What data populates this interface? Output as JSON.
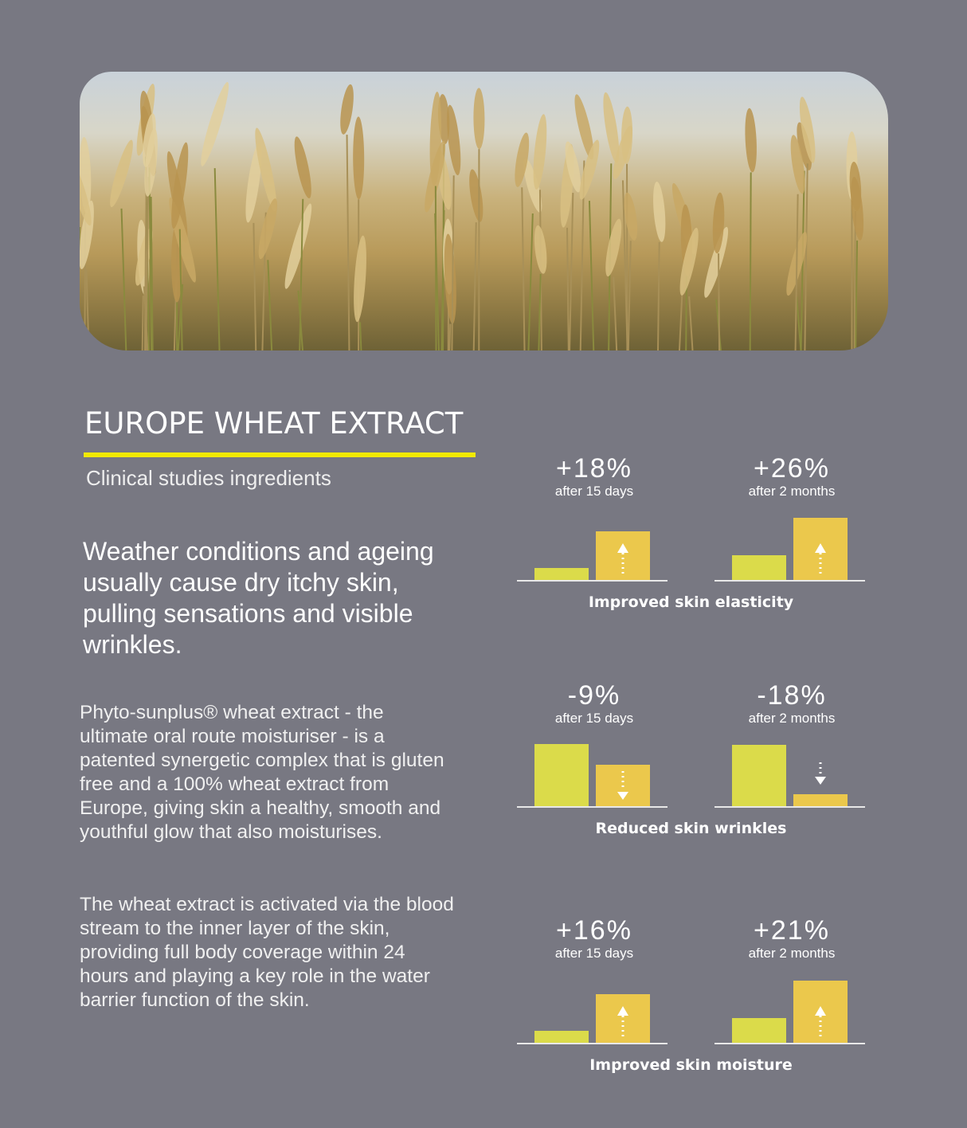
{
  "header": {
    "title": "EUROPE WHEAT EXTRACT",
    "subtitle": "Clinical studies ingredients"
  },
  "lead": "Weather conditions and ageing usually cause dry itchy skin, pulling sensations and visible wrinkles.",
  "paragraphs": [
    "Phyto-sunplus® wheat extract - the ultimate oral route moisturiser - is a patented synergetic complex that is gluten free and a 100% wheat extract from Europe, giving skin a healthy, smooth and youthful glow that also moisturises.",
    "The wheat extract is activated via the blood stream to the inner layer of the skin, providing full body coverage within 24 hours and playing a key role in the water barrier function of the skin."
  ],
  "colors": {
    "background": "#787882",
    "underline": "#f2ea00",
    "before": "#dbdb4a",
    "after": "#ebc84c"
  },
  "chart_data": [
    {
      "type": "bar",
      "title": "Improved skin elasticity",
      "direction": "up",
      "metrics": [
        {
          "value": "+18%",
          "period": "after 15 days",
          "before": 15,
          "after": 61
        },
        {
          "value": "+26%",
          "period": "after 2 months",
          "before": 31,
          "after": 78
        }
      ]
    },
    {
      "type": "bar",
      "title": "Reduced skin wrinkles",
      "direction": "down",
      "metrics": [
        {
          "value": "-9%",
          "period": "after 15 days",
          "before": 78,
          "after": 52
        },
        {
          "value": "-18%",
          "period": "after 2 months",
          "before": 77,
          "after": 15
        }
      ]
    },
    {
      "type": "bar",
      "title": "Improved skin moisture",
      "direction": "up",
      "metrics": [
        {
          "value": "+16%",
          "period": "after 15 days",
          "before": 15,
          "after": 61
        },
        {
          "value": "+21%",
          "period": "after 2 months",
          "before": 31,
          "after": 78
        }
      ]
    }
  ]
}
